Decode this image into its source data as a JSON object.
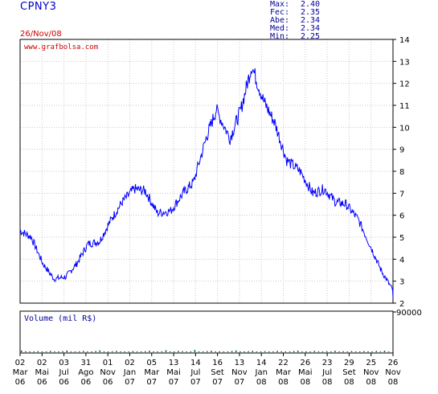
{
  "header": {
    "ticker": "CPNY3",
    "date": "26/Nov/08",
    "stats": [
      {
        "label": "Max:",
        "value": "2.40"
      },
      {
        "label": "Fec:",
        "value": "2.35"
      },
      {
        "label": "Abe:",
        "value": "2.34"
      },
      {
        "label": "Med:",
        "value": "2.34"
      },
      {
        "label": "Min:",
        "value": "2.25"
      }
    ]
  },
  "watermark": "www.grafbolsa.com",
  "colors": {
    "price": "#0000ff",
    "volume": "#008080",
    "frame": "#000000",
    "grid": "#c0c0c0",
    "date": "#cc0000",
    "stats": "#000099"
  },
  "chart_data": [
    {
      "type": "line",
      "title": "CPNY3",
      "xlabel": "",
      "ylabel": "",
      "ylim": [
        2,
        14
      ],
      "y_ticks": [
        "2",
        "3",
        "4",
        "5",
        "6",
        "7",
        "8",
        "9",
        "10",
        "11",
        "12",
        "13",
        "14"
      ],
      "grid": true,
      "x_tick_labels": [
        {
          "day": "02",
          "month": "Mar",
          "year": "06"
        },
        {
          "day": "02",
          "month": "Mai",
          "year": "06"
        },
        {
          "day": "03",
          "month": "Jul",
          "year": "06"
        },
        {
          "day": "31",
          "month": "Ago",
          "year": "06"
        },
        {
          "day": "01",
          "month": "Nov",
          "year": "06"
        },
        {
          "day": "02",
          "month": "Jan",
          "year": "07"
        },
        {
          "day": "05",
          "month": "Mar",
          "year": "07"
        },
        {
          "day": "13",
          "month": "Mai",
          "year": "07"
        },
        {
          "day": "14",
          "month": "Jul",
          "year": "07"
        },
        {
          "day": "16",
          "month": "Set",
          "year": "07"
        },
        {
          "day": "13",
          "month": "Nov",
          "year": "07"
        },
        {
          "day": "14",
          "month": "Jan",
          "year": "08"
        },
        {
          "day": "22",
          "month": "Mar",
          "year": "08"
        },
        {
          "day": "26",
          "month": "Mai",
          "year": "08"
        },
        {
          "day": "23",
          "month": "Jul",
          "year": "08"
        },
        {
          "day": "29",
          "month": "Set",
          "year": "08"
        },
        {
          "day": "25",
          "month": "Nov",
          "year": "08"
        },
        {
          "day": "26",
          "month": "Nov",
          "year": "08"
        }
      ],
      "x": [
        "2006-03-02",
        "2006-04-01",
        "2006-05-02",
        "2006-06-01",
        "2006-07-03",
        "2006-08-01",
        "2006-08-31",
        "2006-10-01",
        "2006-11-01",
        "2006-12-01",
        "2007-01-02",
        "2007-02-01",
        "2007-03-05",
        "2007-04-10",
        "2007-05-13",
        "2007-06-10",
        "2007-07-14",
        "2007-08-10",
        "2007-09-16",
        "2007-10-15",
        "2007-11-13",
        "2007-12-15",
        "2008-01-14",
        "2008-02-15",
        "2008-03-22",
        "2008-04-25",
        "2008-05-26",
        "2008-06-25",
        "2008-07-23",
        "2008-08-25",
        "2008-09-29",
        "2008-10-25",
        "2008-11-25",
        "2008-11-26"
      ],
      "series": [
        {
          "values": [
            5.3,
            5.0,
            3.8,
            3.1,
            3.2,
            3.8,
            4.7,
            4.8,
            5.8,
            6.6,
            7.2,
            7.1,
            6.1,
            6.2,
            7.0,
            7.5,
            9.5,
            10.8,
            9.5,
            10.8,
            12.8,
            11.2,
            10.2,
            8.5,
            8.0,
            7.0,
            7.2,
            6.6,
            6.5,
            5.8,
            4.5,
            3.5,
            2.6,
            2.35
          ]
        }
      ]
    },
    {
      "type": "bar",
      "title": "Volume (mil R$)",
      "ylim": [
        0,
        90000
      ],
      "y_ticks": [
        "90000"
      ],
      "values": [
        3200,
        1800,
        900,
        1400,
        2100,
        800,
        1100,
        2600,
        1500,
        900,
        1900,
        3100,
        1200,
        800,
        1700,
        2400,
        1300,
        900,
        2200,
        3500,
        1400,
        1000,
        1800,
        2600,
        1100,
        900,
        1500,
        2300,
        1200,
        800,
        2000,
        2900,
        1300,
        900,
        1600,
        3800,
        1400,
        1100,
        2500,
        1900,
        1000,
        1700,
        4200,
        1500,
        900,
        2100,
        2800,
        1200,
        1800,
        1400,
        1000,
        2400,
        3300,
        1500,
        1100,
        1900,
        2700,
        1300,
        900,
        2000,
        1500,
        1200,
        2600,
        1800,
        1000,
        1400,
        2200,
        3000,
        1300,
        1700,
        1100,
        2500,
        1600,
        900,
        2000,
        1400,
        2900,
        1200,
        1800,
        1000,
        2300,
        1500,
        1300,
        2100,
        1700,
        1000,
        2600,
        1400,
        3000,
        1100
      ],
      "grid": false
    }
  ]
}
